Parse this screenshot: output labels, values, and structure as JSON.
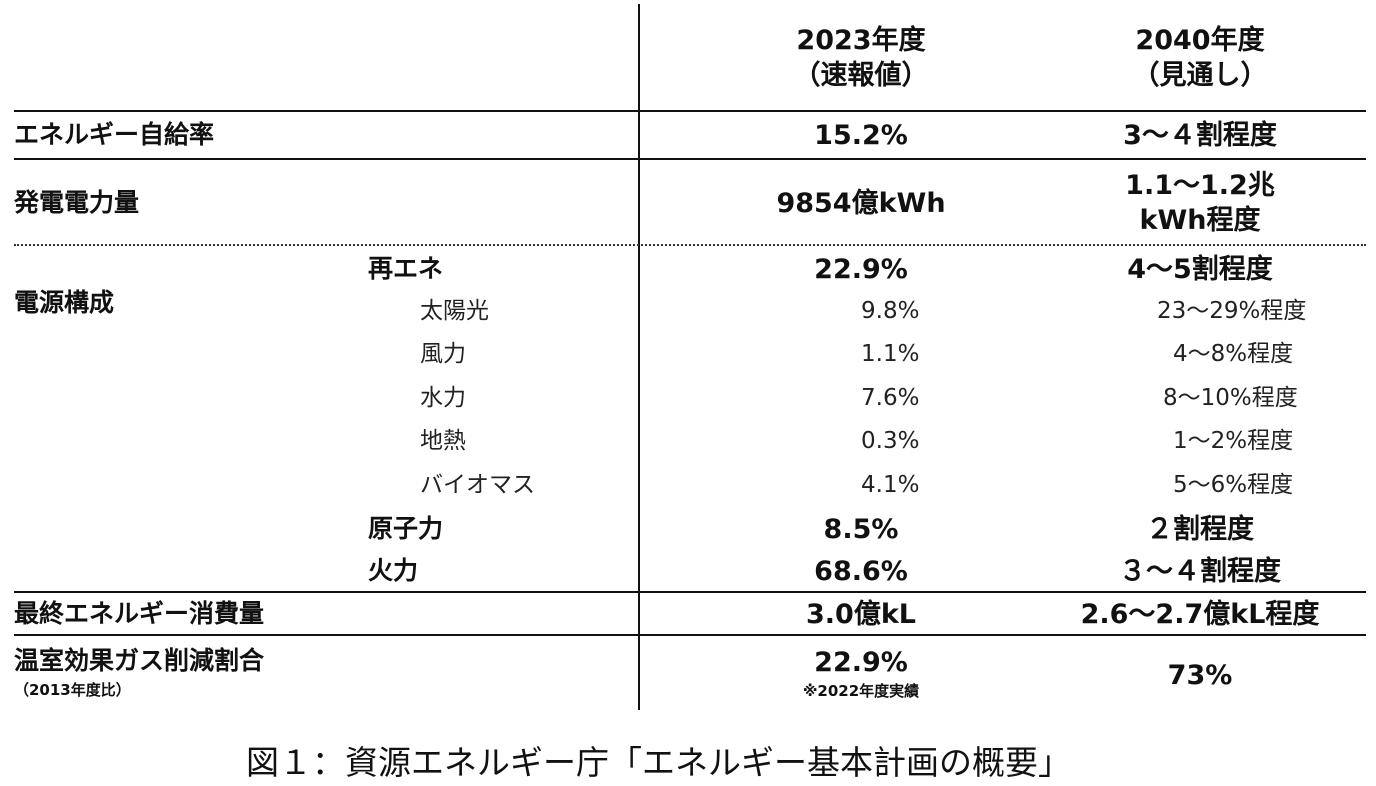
{
  "header": {
    "col1_line1": "2023年度",
    "col1_line2": "（速報値）",
    "col2_line1": "2040年度",
    "col2_line2": "（見通し）"
  },
  "rows": {
    "self_sufficiency": {
      "label": "エネルギー自給率",
      "v2023": "15.2%",
      "v2040": "3～４割程度"
    },
    "generation": {
      "label": "発電電力量",
      "v2023": "9854億kWh",
      "v2040_line1": "1.1～1.2兆",
      "v2040_line2": "kWh程度"
    },
    "power_mix": {
      "label": "電源構成",
      "renewable": {
        "label": "再エネ",
        "v2023": "22.9%",
        "v2040": "4～5割程度"
      },
      "solar": {
        "label": "太陽光",
        "v2023": "9.8%",
        "v2040": "23～29%程度"
      },
      "wind": {
        "label": "風力",
        "v2023": "1.1%",
        "v2040": "4～8%程度"
      },
      "hydro": {
        "label": "水力",
        "v2023": "7.6%",
        "v2040": "8～10%程度"
      },
      "geothermal": {
        "label": "地熱",
        "v2023": "0.3%",
        "v2040": "1～2%程度"
      },
      "biomass": {
        "label": "バイオマス",
        "v2023": "4.1%",
        "v2040": "5～6%程度"
      },
      "nuclear": {
        "label": "原子力",
        "v2023": "8.5%",
        "v2040": "２割程度"
      },
      "thermal": {
        "label": "火力",
        "v2023": "68.6%",
        "v2040": "３～４割程度"
      }
    },
    "final_consumption": {
      "label": "最終エネルギー消費量",
      "v2023": "3.0億kL",
      "v2040": "2.6～2.7億kL程度"
    },
    "ghg_reduction": {
      "label": "温室効果ガス削減割合",
      "sublabel": "（2013年度比）",
      "v2023": "22.9%",
      "v2023_note": "※2022年度実績",
      "v2040": "73%"
    }
  },
  "caption": "図１：資源エネルギー庁「エネルギー基本計画の概要」"
}
